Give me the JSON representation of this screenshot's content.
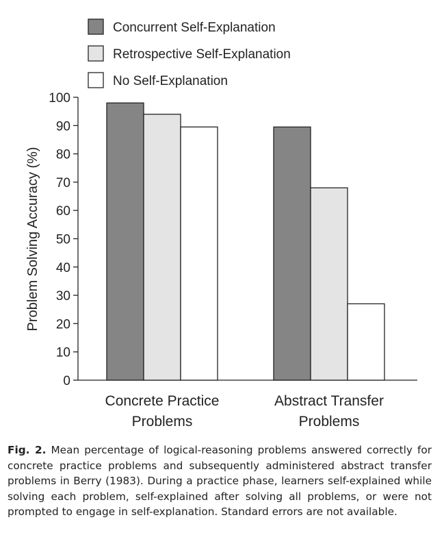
{
  "chart_data": {
    "type": "bar",
    "categories": [
      "Concrete Practice Problems",
      "Abstract Transfer Problems"
    ],
    "category_lines": [
      [
        "Concrete Practice",
        "Problems"
      ],
      [
        "Abstract Transfer",
        "Problems"
      ]
    ],
    "series": [
      {
        "name": "Concurrent Self-Explanation",
        "color": "#858585",
        "values": [
          98,
          89.5
        ]
      },
      {
        "name": "Retrospective Self-Explanation",
        "color": "#e4e4e4",
        "values": [
          94,
          68
        ]
      },
      {
        "name": "No Self-Explanation",
        "color": "#ffffff",
        "values": [
          89.5,
          27
        ]
      }
    ],
    "ylabel": "Problem Solving Accuracy (%)",
    "ylim": [
      0,
      100
    ],
    "yticks": [
      0,
      10,
      20,
      30,
      40,
      50,
      60,
      70,
      80,
      90,
      100
    ],
    "legend_position": "top-left",
    "grid": false
  },
  "caption": {
    "label": "Fig. 2.",
    "text": "Mean percentage of logical-reasoning problems answered correctly for concrete practice problems and subsequently administered abstract transfer problems in Berry (1983). During a practice phase, learners self-explained while solving each problem, self-explained after solving all problems, or were not prompted to engage in self-explanation. Standard errors are not available."
  }
}
